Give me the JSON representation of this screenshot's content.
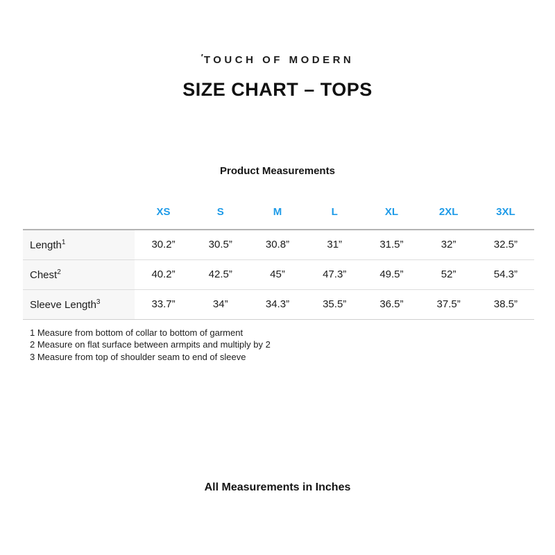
{
  "header": {
    "logo_mark": "′",
    "logo_text": "TOUCH OF MODERN",
    "title": "SIZE CHART – TOPS"
  },
  "table": {
    "caption": "Product Measurements",
    "sizes": [
      "XS",
      "S",
      "M",
      "L",
      "XL",
      "2XL",
      "3XL"
    ],
    "rows": [
      {
        "label": "Length",
        "sup": "1",
        "values": [
          "30.2”",
          "30.5”",
          "30.8”",
          "31”",
          "31.5”",
          "32”",
          "32.5”"
        ]
      },
      {
        "label": "Chest",
        "sup": "2",
        "values": [
          "40.2”",
          "42.5”",
          "45”",
          "47.3”",
          "49.5”",
          "52”",
          "54.3”"
        ]
      },
      {
        "label": "Sleeve Length",
        "sup": "3",
        "values": [
          "33.7”",
          "34”",
          "34.3”",
          "35.5”",
          "36.5”",
          "37.5”",
          "38.5”"
        ]
      }
    ]
  },
  "footnotes": [
    "1 Measure from bottom of collar to bottom of garment",
    "2 Measure on flat surface between armpits and multiply by 2",
    "3 Measure from top of shoulder seam to end of sleeve"
  ],
  "footer": {
    "note": "All Measurements in Inches"
  },
  "colors": {
    "accent_blue": "#1E9BE8",
    "text": "#1C1C1C",
    "row_label_bg": "#F7F7F7",
    "table_top_border": "#B3B3B3",
    "table_row_border": "#DCDCDC"
  }
}
